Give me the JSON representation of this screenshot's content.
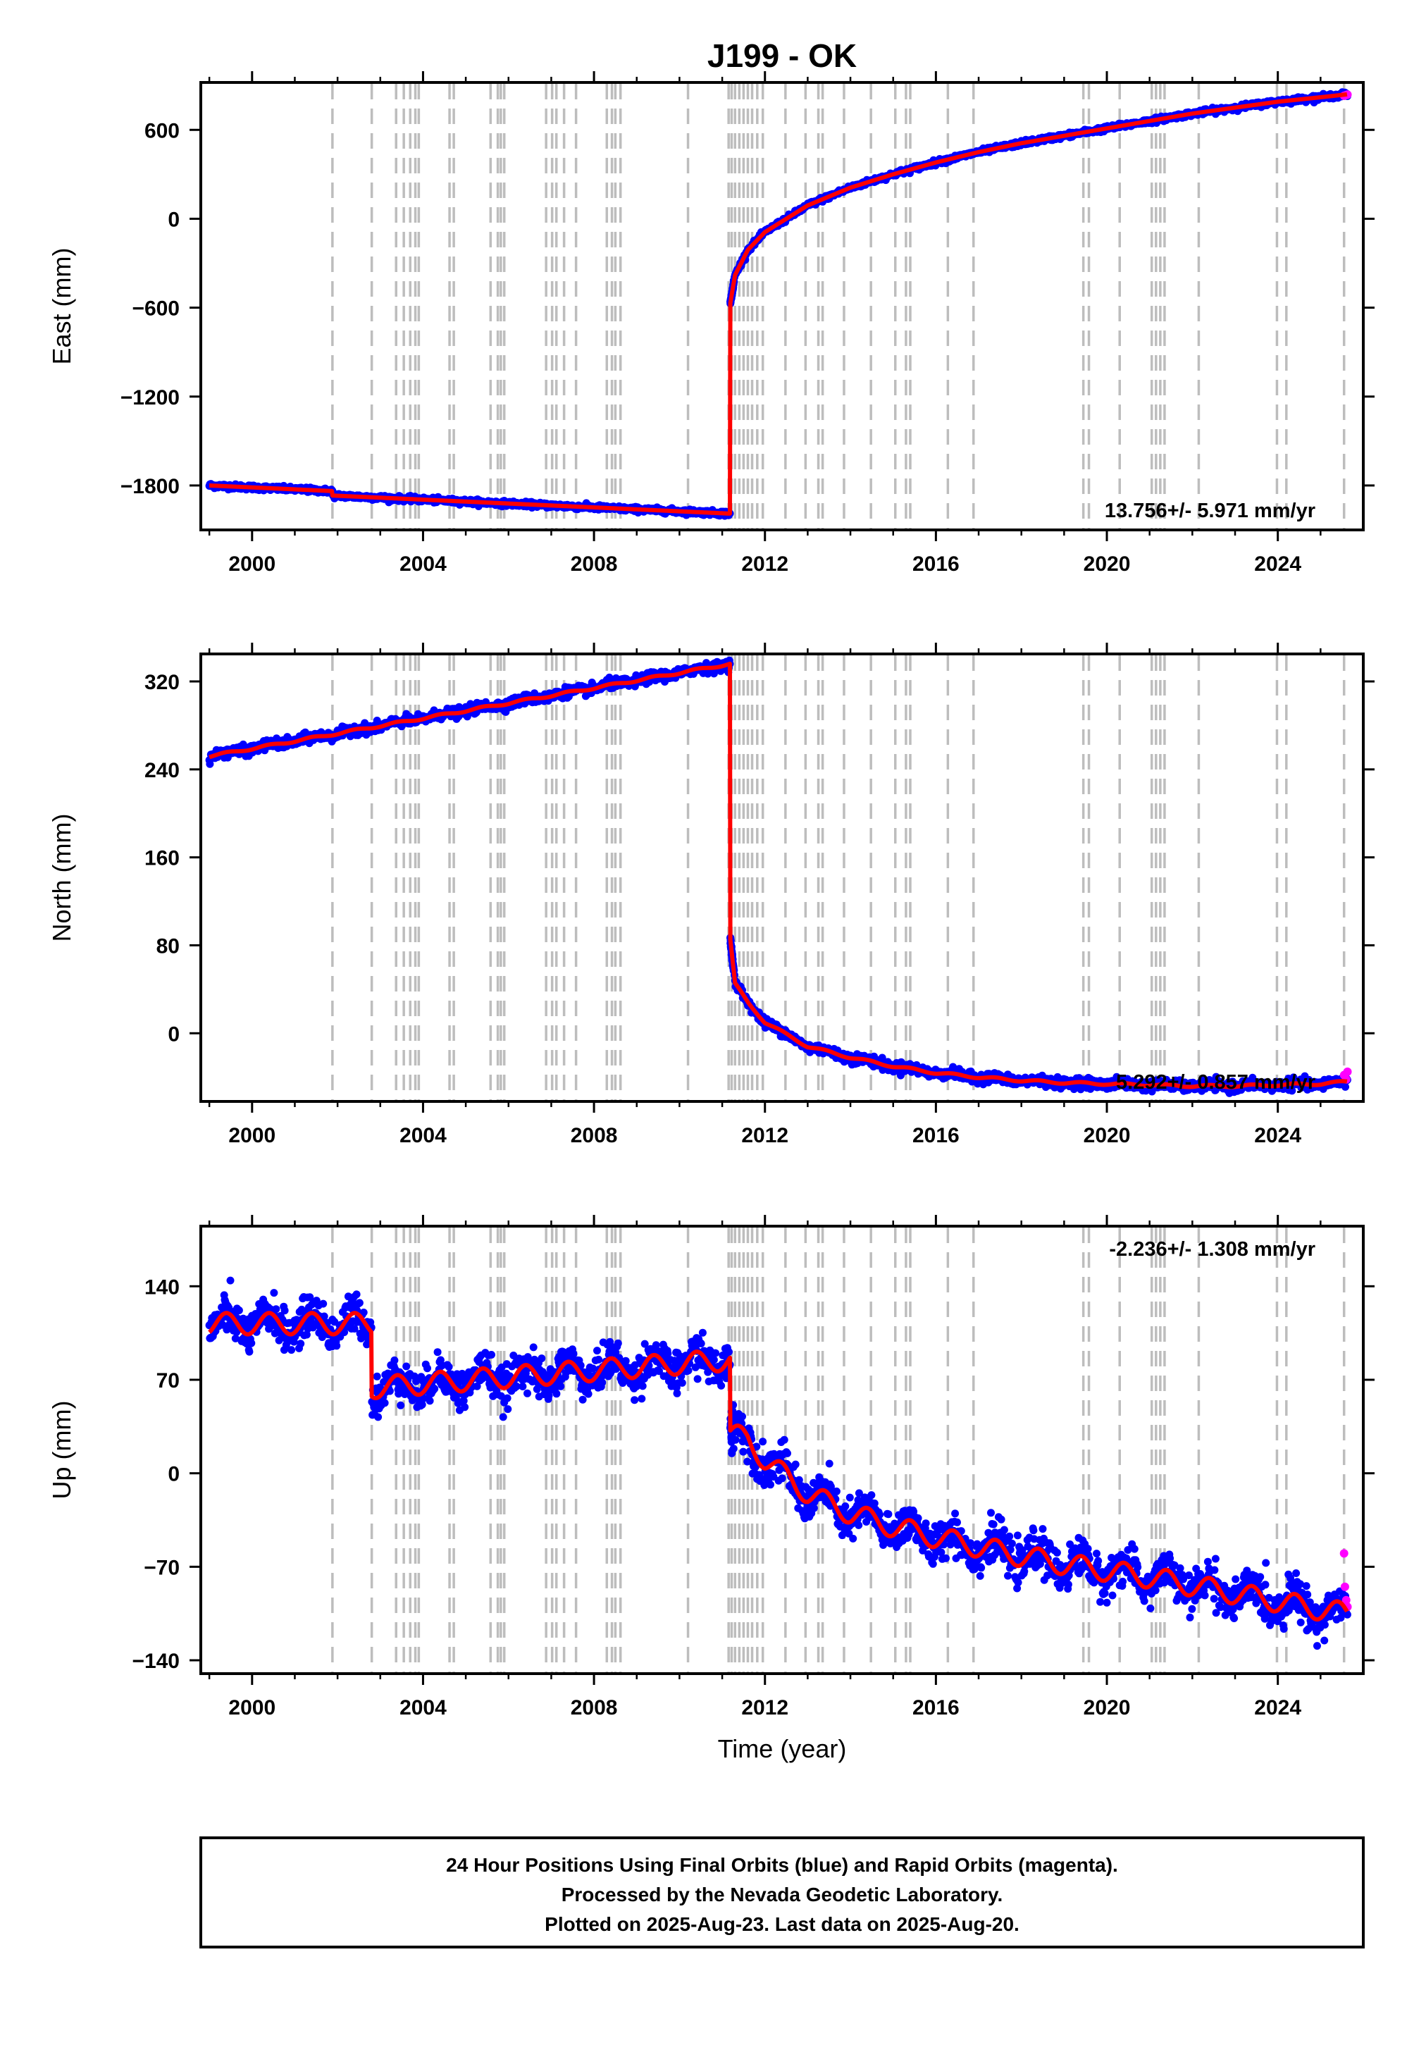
{
  "colors": {
    "final_orbits": "#0000ff",
    "rapid_orbits": "#ff00ff",
    "model": "#ff0000",
    "event_lines": "#bdbdbd"
  },
  "chart_data": {
    "title": "J199 - OK",
    "type": "scatter",
    "xlabel": "Time (year)",
    "xlim": [
      1998.8,
      2026.0
    ],
    "x_ticks": [
      "2000",
      "2004",
      "2008",
      "2012",
      "2016",
      "2020",
      "2024"
    ],
    "event_lines_years": [
      2001.88,
      2002.8,
      2003.37,
      2003.55,
      2003.7,
      2003.82,
      2003.9,
      2004.62,
      2004.72,
      2005.58,
      2005.75,
      2005.82,
      2005.9,
      2006.88,
      2007.02,
      2007.12,
      2007.3,
      2007.58,
      2008.3,
      2008.42,
      2008.5,
      2008.62,
      2010.2,
      2011.15,
      2011.22,
      2011.3,
      2011.4,
      2011.5,
      2011.6,
      2011.7,
      2011.82,
      2011.95,
      2012.48,
      2012.95,
      2013.25,
      2013.35,
      2013.85,
      2014.48,
      2015.05,
      2015.3,
      2015.4,
      2016.28,
      2016.88,
      2019.45,
      2019.58,
      2020.3,
      2021.05,
      2021.15,
      2021.25,
      2021.35,
      2022.15,
      2023.98,
      2024.2,
      2025.55
    ],
    "panels": [
      {
        "name": "East",
        "ylabel": "East (mm)",
        "ylim": [
          -2100,
          920
        ],
        "y_ticks": [
          600,
          0,
          -600,
          -1200,
          -1800
        ],
        "y_tick_labels": [
          "600",
          "0",
          "−600",
          "−1200",
          "−1800"
        ],
        "rate_label": "13.756+/- 5.971 mm/yr",
        "rate_position": "bottom-right",
        "data_start": 1999.0,
        "data_end": 2025.63,
        "break_year": 2011.19,
        "pre_break": {
          "start_value": -1830,
          "end_value": -1990,
          "offset_2001_88": 30
        },
        "post_break": {
          "values_by_year": [
            [
              2011.19,
              -570
            ],
            [
              2011.3,
              -380
            ],
            [
              2011.6,
              -210
            ],
            [
              2012.0,
              -90
            ],
            [
              2013.0,
              90
            ],
            [
              2014.0,
              210
            ],
            [
              2015.0,
              300
            ],
            [
              2016.0,
              380
            ],
            [
              2017.0,
              450
            ],
            [
              2018.0,
              510
            ],
            [
              2019.0,
              560
            ],
            [
              2020.0,
              610
            ],
            [
              2021.0,
              660
            ],
            [
              2022.0,
              710
            ],
            [
              2023.0,
              750
            ],
            [
              2024.0,
              790
            ],
            [
              2025.0,
              820
            ],
            [
              2025.63,
              840
            ]
          ]
        },
        "scatter_mm": 15,
        "seasonal_mm": 0,
        "rapid_values": [
          [
            2025.55,
            830
          ],
          [
            2025.6,
            835
          ],
          [
            2025.63,
            838
          ]
        ]
      },
      {
        "name": "North",
        "ylabel": "North (mm)",
        "ylim": [
          -62,
          345
        ],
        "y_ticks": [
          320,
          240,
          160,
          80,
          0
        ],
        "y_tick_labels": [
          "320",
          "240",
          "160",
          "80",
          "0"
        ],
        "rate_label": "5.292+/- 0.857 mm/yr",
        "rate_position": "bottom-right",
        "data_start": 1999.0,
        "data_end": 2025.63,
        "break_year": 2011.19,
        "pre_break": {
          "start_value": 252,
          "end_value": 336,
          "offset_2001_88": 0
        },
        "post_break": {
          "values_by_year": [
            [
              2011.19,
              85
            ],
            [
              2011.3,
              45
            ],
            [
              2011.6,
              28
            ],
            [
              2012.0,
              10
            ],
            [
              2013.0,
              -12
            ],
            [
              2014.0,
              -22
            ],
            [
              2015.0,
              -30
            ],
            [
              2016.0,
              -36
            ],
            [
              2017.0,
              -40
            ],
            [
              2018.0,
              -43
            ],
            [
              2019.0,
              -45
            ],
            [
              2020.0,
              -46
            ],
            [
              2021.0,
              -47
            ],
            [
              2022.0,
              -48
            ],
            [
              2023.0,
              -48
            ],
            [
              2024.0,
              -47
            ],
            [
              2025.0,
              -46
            ],
            [
              2025.63,
              -44
            ]
          ]
        },
        "scatter_mm": 4,
        "seasonal_mm": 1,
        "rapid_values": [
          [
            2025.55,
            -38
          ],
          [
            2025.6,
            -42
          ],
          [
            2025.63,
            -35
          ]
        ]
      },
      {
        "name": "Up",
        "ylabel": "Up (mm)",
        "ylim": [
          -150,
          185
        ],
        "y_ticks": [
          140,
          70,
          0,
          -70,
          -140
        ],
        "y_tick_labels": [
          "140",
          "70",
          "0",
          "−70",
          "−140"
        ],
        "rate_label": "-2.236+/- 1.308 mm/yr",
        "rate_position": "top-right",
        "data_start": 1999.0,
        "data_end": 2025.63,
        "break_year": 2011.19,
        "segments": [
          [
            1999.0,
            2002.8,
            112,
            112
          ],
          [
            2002.8,
            2011.19,
            64,
            85
          ],
          [
            2011.19,
            2011.6,
            30,
            25
          ]
        ],
        "post_break": {
          "values_by_year": [
            [
              2011.6,
              25
            ],
            [
              2012.0,
              10
            ],
            [
              2013.0,
              -15
            ],
            [
              2014.0,
              -30
            ],
            [
              2015.0,
              -40
            ],
            [
              2016.0,
              -48
            ],
            [
              2017.0,
              -55
            ],
            [
              2018.0,
              -62
            ],
            [
              2019.0,
              -68
            ],
            [
              2020.0,
              -73
            ],
            [
              2021.0,
              -78
            ],
            [
              2022.0,
              -84
            ],
            [
              2023.0,
              -90
            ],
            [
              2024.0,
              -96
            ],
            [
              2025.0,
              -102
            ],
            [
              2025.63,
              -105
            ]
          ]
        },
        "scatter_mm": 13,
        "seasonal_mm": 8,
        "rapid_values": [
          [
            2025.55,
            -60
          ],
          [
            2025.57,
            -85
          ],
          [
            2025.6,
            -95
          ],
          [
            2025.63,
            -100
          ]
        ]
      }
    ]
  },
  "footer": {
    "line1": "24 Hour Positions Using Final Orbits (blue) and Rapid Orbits (magenta).",
    "line2": "Processed by the Nevada Geodetic Laboratory.",
    "line3": "Plotted on 2025-Aug-23. Last data on 2025-Aug-20."
  }
}
